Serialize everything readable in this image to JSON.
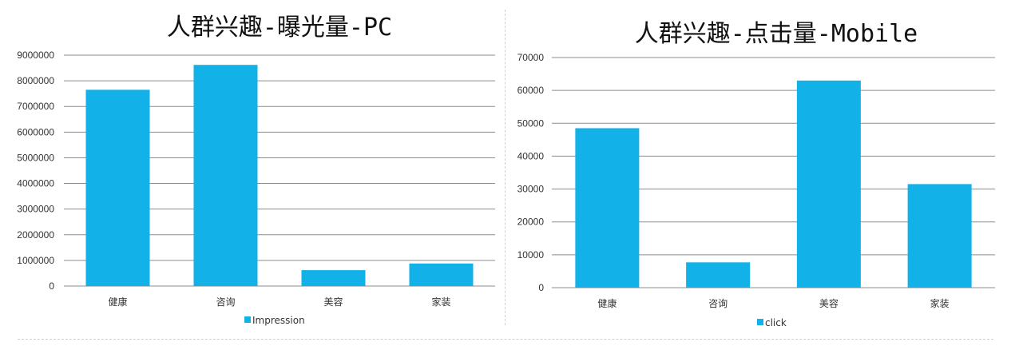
{
  "chart_data": [
    {
      "type": "bar",
      "title": "人群兴趣-曝光量-PC",
      "categories": [
        "健康",
        "咨询",
        "美容",
        "家装"
      ],
      "series": [
        {
          "name": "Impression",
          "values": [
            7650000,
            8620000,
            620000,
            880000
          ]
        }
      ],
      "ylim": [
        0,
        9000000
      ],
      "yticks": [
        0,
        1000000,
        2000000,
        3000000,
        4000000,
        5000000,
        6000000,
        7000000,
        8000000,
        9000000
      ],
      "grid": true,
      "legend": "bottom",
      "colors": {
        "bar": "#12b1e8",
        "grid": "#8c8c8c"
      }
    },
    {
      "type": "bar",
      "title": "人群兴趣-点击量-Mobile",
      "categories": [
        "健康",
        "咨询",
        "美容",
        "家装"
      ],
      "series": [
        {
          "name": "click",
          "values": [
            48500,
            7700,
            63000,
            31500
          ]
        }
      ],
      "ylim": [
        0,
        70000
      ],
      "yticks": [
        0,
        10000,
        20000,
        30000,
        40000,
        50000,
        60000,
        70000
      ],
      "grid": true,
      "legend": "bottom",
      "colors": {
        "bar": "#12b1e8",
        "grid": "#8c8c8c"
      }
    }
  ]
}
